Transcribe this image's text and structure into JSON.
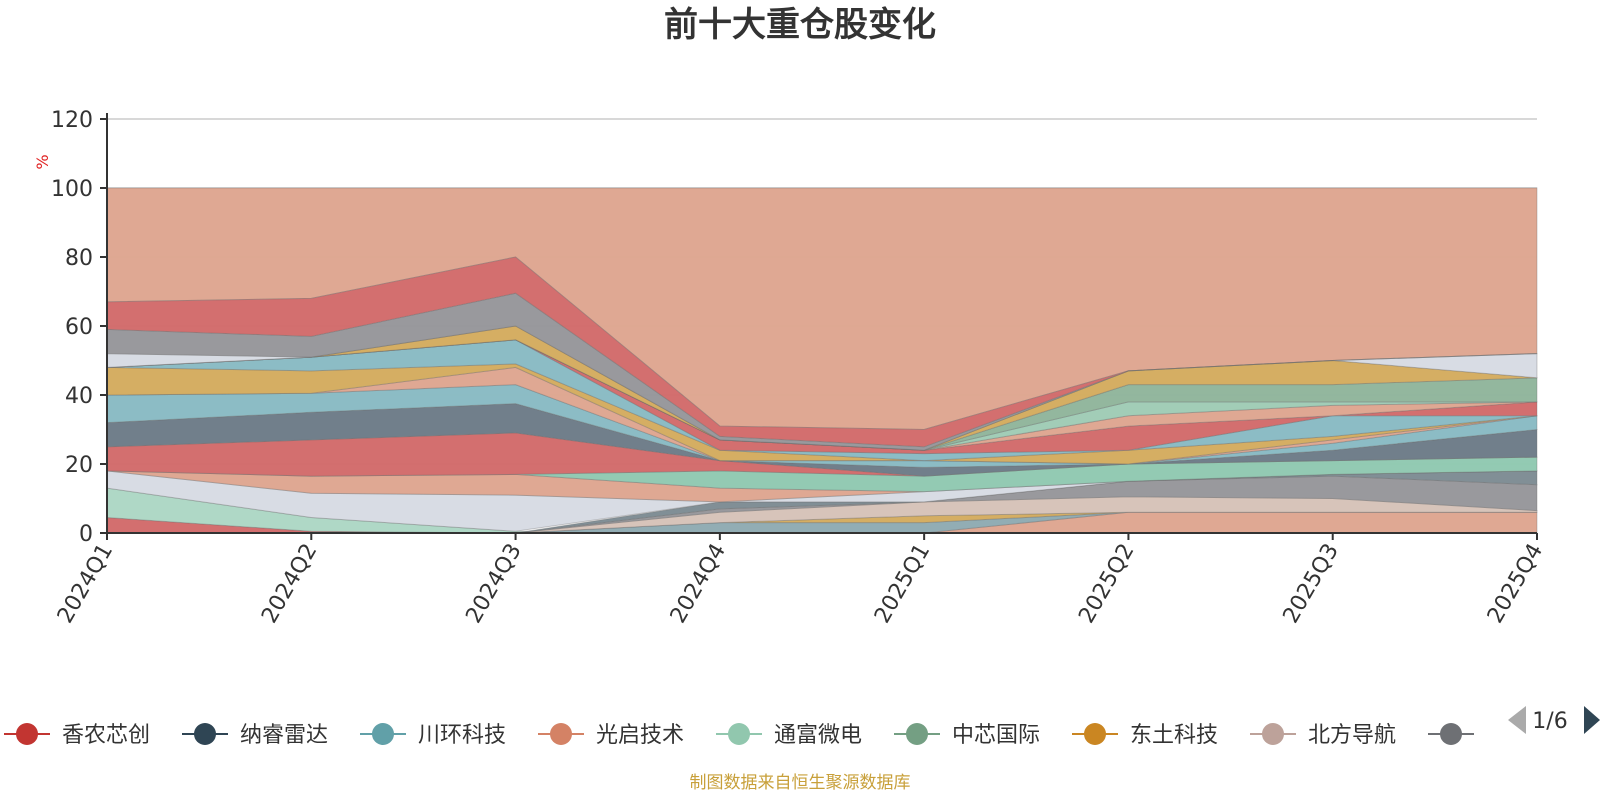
{
  "chart_data": {
    "type": "area",
    "title": "前十大重仓股变化",
    "ylabel": "%",
    "ylim": [
      0,
      120
    ],
    "yticks": [
      0,
      20,
      40,
      60,
      80,
      100,
      120
    ],
    "categories": [
      "2024Q1",
      "2024Q2",
      "2024Q3",
      "2024Q4",
      "2025Q1",
      "2025Q2",
      "2025Q3",
      "2025Q4"
    ],
    "other_band": {
      "color": "#dea58f",
      "lower": [
        67,
        68,
        80,
        31,
        30,
        47,
        50,
        52
      ],
      "upper": [
        100,
        100,
        100,
        100,
        100,
        100,
        100,
        100
      ]
    },
    "bands": [
      {
        "color": "#d26a6a",
        "lower": [
          0,
          0,
          0,
          0,
          0,
          0,
          0,
          0
        ],
        "upper": [
          4.5,
          0.5,
          0,
          0,
          0,
          0,
          0,
          0
        ]
      },
      {
        "color": "#acd7c4",
        "lower": [
          4.5,
          0.5,
          0,
          0,
          0,
          0,
          0,
          0
        ],
        "upper": [
          13,
          4.5,
          0.5,
          0,
          0,
          0,
          0,
          0
        ]
      },
      {
        "color": "#dea58f",
        "lower": [
          0,
          0,
          0,
          0,
          0,
          0,
          0,
          0
        ],
        "upper": [
          0,
          0,
          0,
          0,
          0,
          6,
          6,
          6
        ]
      },
      {
        "color": "#8eaab2",
        "lower": [
          0,
          0,
          0,
          0,
          0,
          6,
          6,
          6
        ],
        "upper": [
          0,
          0,
          0,
          3,
          3,
          6,
          6,
          6
        ]
      },
      {
        "color": "#d4ab5e",
        "lower": [
          0,
          0,
          0,
          3,
          3,
          6,
          6,
          6
        ],
        "upper": [
          0,
          0,
          0,
          3,
          5,
          6,
          6,
          6
        ]
      },
      {
        "color": "#d6c2b8",
        "lower": [
          0,
          0,
          0,
          3,
          5,
          6,
          6,
          6
        ],
        "upper": [
          0,
          0,
          0,
          6,
          9,
          10.5,
          10,
          6.5
        ]
      },
      {
        "color": "#96969a",
        "lower": [
          0,
          0,
          0,
          6,
          9,
          10.5,
          10,
          6.5
        ],
        "upper": [
          0,
          0,
          0,
          7,
          9,
          15,
          16.5,
          14
        ]
      },
      {
        "color": "#7d8b93",
        "lower": [
          0,
          0,
          0,
          7,
          9,
          15,
          16.5,
          14
        ],
        "upper": [
          0,
          0,
          0,
          9,
          9,
          15,
          17,
          18
        ]
      },
      {
        "color": "#d7dbe3",
        "lower": [
          13,
          4.5,
          0.5,
          9,
          9,
          15,
          17,
          18
        ],
        "upper": [
          18,
          11.5,
          11,
          9,
          12,
          15,
          17,
          18
        ]
      },
      {
        "color": "#dea58f",
        "lower": [
          18,
          11.5,
          11,
          9,
          12,
          15,
          17,
          18
        ],
        "upper": [
          18,
          16.5,
          17,
          13,
          12,
          15,
          17,
          18
        ]
      },
      {
        "color": "#8fc8b1",
        "lower": [
          18,
          16.5,
          17,
          13,
          12,
          15,
          17,
          18
        ],
        "upper": [
          18,
          16.5,
          17,
          18,
          16.5,
          20,
          21,
          22
        ]
      },
      {
        "color": "#d26a6a",
        "lower": [
          18,
          16.5,
          17,
          18,
          16.5,
          20,
          21,
          22
        ],
        "upper": [
          25,
          27,
          29,
          21,
          16.5,
          20,
          21,
          22
        ]
      },
      {
        "color": "#6c7b87",
        "lower": [
          25,
          27,
          29,
          21,
          16.5,
          20,
          21,
          22
        ],
        "upper": [
          32,
          35,
          37.5,
          21,
          19,
          20,
          24,
          30
        ]
      },
      {
        "color": "#88bac3",
        "lower": [
          32,
          35,
          37.5,
          21,
          19,
          20,
          24,
          30
        ],
        "upper": [
          40,
          40.5,
          43,
          21,
          21,
          20,
          26,
          34
        ]
      },
      {
        "color": "#dea58f",
        "lower": [
          40,
          40.5,
          43,
          21,
          21,
          20,
          26,
          34
        ],
        "upper": [
          40,
          40.5,
          48,
          21,
          21,
          20,
          27,
          34
        ]
      },
      {
        "color": "#d4ab5e",
        "lower": [
          40,
          40.5,
          48,
          21,
          21,
          20,
          27,
          34
        ],
        "upper": [
          48,
          47,
          49,
          24,
          21,
          24,
          28,
          34
        ]
      },
      {
        "color": "#88bac3",
        "lower": [
          48,
          47,
          49,
          24,
          21,
          24,
          28,
          34
        ],
        "upper": [
          48,
          51,
          56,
          24,
          23,
          24,
          34,
          34
        ]
      },
      {
        "color": "#d26a6a",
        "lower": [
          48,
          51,
          56,
          24,
          23,
          24,
          34,
          34
        ],
        "upper": [
          48,
          51,
          56,
          27,
          24,
          31,
          34,
          38
        ]
      },
      {
        "color": "#dea58f",
        "lower": [
          48,
          51,
          56,
          27,
          24,
          31,
          34,
          38
        ],
        "upper": [
          48,
          51,
          56,
          27,
          24,
          34,
          37,
          38
        ]
      },
      {
        "color": "#9fcbb5",
        "lower": [
          48,
          51,
          56,
          27,
          24,
          34,
          37,
          38
        ],
        "upper": [
          48,
          51,
          56,
          27,
          24,
          38,
          38,
          38
        ]
      },
      {
        "color": "#8fb59b",
        "lower": [
          48,
          51,
          56,
          27,
          24,
          38,
          38,
          38
        ],
        "upper": [
          48,
          51,
          56,
          27,
          24,
          43,
          43,
          45
        ]
      },
      {
        "color": "#d4ab5e",
        "lower": [
          48,
          51,
          56,
          27,
          24,
          43,
          43,
          45
        ],
        "upper": [
          48,
          51,
          60,
          27,
          24,
          47,
          50,
          45
        ]
      },
      {
        "color": "#d7dbe3",
        "lower": [
          48,
          51,
          60,
          27,
          24,
          47,
          50,
          45
        ],
        "upper": [
          52,
          51,
          60,
          27,
          24,
          47,
          50,
          52
        ]
      },
      {
        "color": "#96969a",
        "lower": [
          52,
          51,
          60,
          27,
          24,
          47,
          50,
          52
        ],
        "upper": [
          59,
          57,
          69.5,
          28,
          25,
          47,
          50,
          52
        ]
      },
      {
        "color": "#d26a6a",
        "lower": [
          59,
          57,
          69.5,
          28,
          25,
          47,
          50,
          52
        ],
        "upper": [
          67,
          68,
          80,
          31,
          30,
          47,
          50,
          52
        ]
      }
    ],
    "legend": [
      {
        "name": "香农芯创",
        "color": "#c23531"
      },
      {
        "name": "纳睿雷达",
        "color": "#2f4554"
      },
      {
        "name": "川环科技",
        "color": "#61a0a8"
      },
      {
        "name": "光启技术",
        "color": "#d48265"
      },
      {
        "name": "通富微电",
        "color": "#91c7ae"
      },
      {
        "name": "中芯国际",
        "color": "#749f83"
      },
      {
        "name": "东土科技",
        "color": "#ca8622"
      },
      {
        "name": "北方导航",
        "color": "#bda29a"
      },
      {
        "name": "",
        "color": "#6e7074"
      }
    ],
    "legend_placement": "bottom",
    "grid": true
  },
  "legend_pager": {
    "text": "1/6"
  },
  "source_note": "制图数据来自恒生聚源数据库"
}
